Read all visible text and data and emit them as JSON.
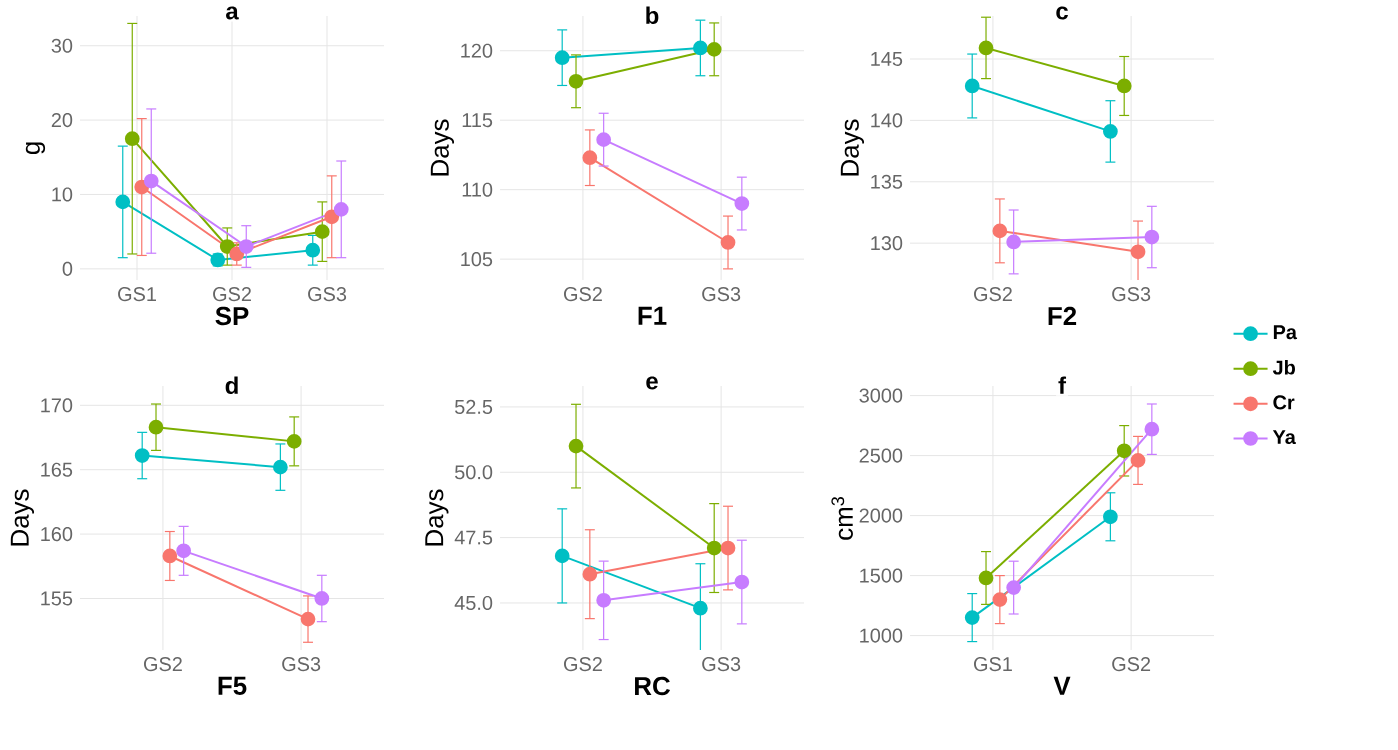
{
  "chart_data": [
    {
      "type": "line",
      "title": "a",
      "xlabel": "SP",
      "ylabel": "g",
      "categories": [
        "GS1",
        "GS2",
        "GS3"
      ],
      "ylim": [
        -1.5,
        34
      ],
      "yticks": [
        0,
        10,
        20,
        30
      ],
      "grid": true,
      "marker": "circle",
      "series": [
        {
          "color": "#00bfc4",
          "values": [
            9,
            1.2,
            2.5
          ],
          "errors": [
            7.5,
            0.8,
            2
          ]
        },
        {
          "color": "#7cae00",
          "values": [
            17.5,
            3,
            5
          ],
          "errors": [
            15.5,
            2.5,
            4
          ]
        },
        {
          "color": "#f8766d",
          "values": [
            11,
            2,
            7
          ],
          "errors": [
            9.2,
            1.5,
            5.5
          ]
        },
        {
          "color": "#c77cff",
          "values": [
            11.8,
            3,
            8
          ],
          "errors": [
            9.7,
            2.8,
            6.5
          ]
        }
      ]
    },
    {
      "type": "line",
      "title": "b",
      "xlabel": "F1",
      "ylabel": "Days",
      "categories": [
        "GS2",
        "GS3"
      ],
      "ylim": [
        103.5,
        122.5
      ],
      "yticks": [
        105,
        110,
        115,
        120
      ],
      "grid": true,
      "marker": "circle",
      "series": [
        {
          "color": "#00bfc4",
          "values": [
            119.5,
            120.2
          ],
          "errors": [
            2,
            2
          ]
        },
        {
          "color": "#7cae00",
          "values": [
            117.8,
            120.1
          ],
          "errors": [
            1.9,
            1.9
          ]
        },
        {
          "color": "#f8766d",
          "values": [
            112.3,
            106.2
          ],
          "errors": [
            2,
            1.9
          ]
        },
        {
          "color": "#c77cff",
          "values": [
            113.6,
            109
          ],
          "errors": [
            1.9,
            1.9
          ]
        }
      ]
    },
    {
      "type": "line",
      "title": "c",
      "xlabel": "F2",
      "ylabel": "Days",
      "categories": [
        "GS2",
        "GS3"
      ],
      "ylim": [
        127,
        148.5
      ],
      "yticks": [
        130,
        135,
        140,
        145
      ],
      "grid": true,
      "marker": "circle",
      "legend": "right",
      "series": [
        {
          "name": "Pa",
          "color": "#00bfc4",
          "values": [
            142.8,
            139.1
          ],
          "errors": [
            2.6,
            2.5
          ]
        },
        {
          "name": "Jb",
          "color": "#7cae00",
          "values": [
            145.9,
            142.8
          ],
          "errors": [
            2.5,
            2.4
          ]
        },
        {
          "name": "Cr",
          "color": "#f8766d",
          "values": [
            131,
            129.3
          ],
          "errors": [
            2.6,
            2.5
          ]
        },
        {
          "name": "Ya",
          "color": "#c77cff",
          "values": [
            130.1,
            130.5
          ],
          "errors": [
            2.6,
            2.5
          ]
        }
      ]
    },
    {
      "type": "line",
      "title": "d",
      "xlabel": "F5",
      "ylabel": "Days",
      "categories": [
        "GS2",
        "GS3"
      ],
      "ylim": [
        151,
        171.5
      ],
      "yticks": [
        155,
        160,
        165,
        170
      ],
      "grid": true,
      "marker": "circle",
      "series": [
        {
          "color": "#00bfc4",
          "values": [
            166.1,
            165.2
          ],
          "errors": [
            1.8,
            1.8
          ]
        },
        {
          "color": "#7cae00",
          "values": [
            168.3,
            167.2
          ],
          "errors": [
            1.8,
            1.9
          ]
        },
        {
          "color": "#f8766d",
          "values": [
            158.3,
            153.4
          ],
          "errors": [
            1.9,
            1.8
          ]
        },
        {
          "color": "#c77cff",
          "values": [
            158.7,
            155
          ],
          "errors": [
            1.9,
            1.8
          ]
        }
      ]
    },
    {
      "type": "line",
      "title": "e",
      "xlabel": "RC",
      "ylabel": "Days",
      "categories": [
        "GS2",
        "GS3"
      ],
      "ylim": [
        43.2,
        53.3
      ],
      "yticks": [
        {
          "value": 45,
          "label": "45.0"
        },
        47.5,
        {
          "value": 50,
          "label": "50.0"
        },
        52.5
      ],
      "grid": true,
      "marker": "circle",
      "series": [
        {
          "color": "#00bfc4",
          "values": [
            46.8,
            44.8
          ],
          "errors": [
            1.8,
            1.7
          ]
        },
        {
          "color": "#7cae00",
          "values": [
            51,
            47.1
          ],
          "errors": [
            1.6,
            1.7
          ]
        },
        {
          "color": "#f8766d",
          "values": [
            46.1,
            47.1
          ],
          "errors": [
            1.7,
            1.6
          ]
        },
        {
          "color": "#c77cff",
          "values": [
            45.1,
            45.8
          ],
          "errors": [
            1.5,
            1.6
          ]
        }
      ]
    },
    {
      "type": "line",
      "title": "f",
      "xlabel": "V",
      "ylabel": "cm$^{3}$",
      "categories": [
        "GS1",
        "GS2"
      ],
      "ylim": [
        880,
        3080
      ],
      "yticks": [
        1000,
        1500,
        2000,
        2500,
        3000
      ],
      "grid": true,
      "marker": "circle",
      "series": [
        {
          "color": "#00bfc4",
          "values": [
            1150,
            1990
          ],
          "errors": [
            200,
            200
          ]
        },
        {
          "color": "#7cae00",
          "values": [
            1480,
            2540
          ],
          "errors": [
            220,
            210
          ]
        },
        {
          "color": "#f8766d",
          "values": [
            1300,
            2460
          ],
          "errors": [
            200,
            200
          ]
        },
        {
          "color": "#c77cff",
          "values": [
            1400,
            2720
          ],
          "errors": [
            220,
            210
          ]
        }
      ]
    }
  ]
}
